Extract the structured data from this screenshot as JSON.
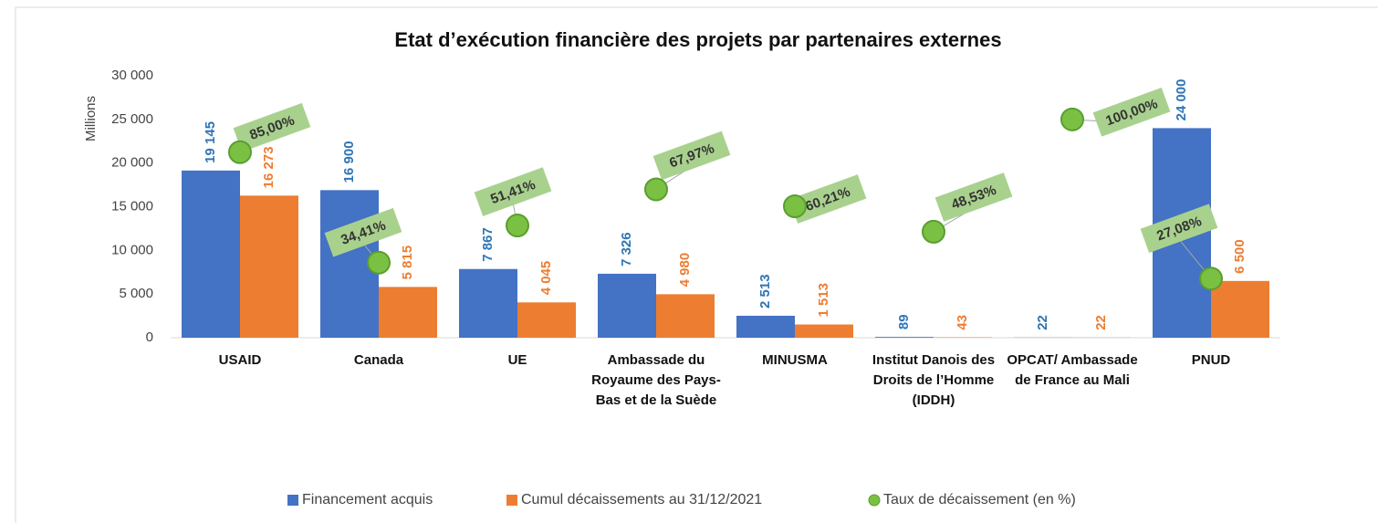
{
  "chart_data": {
    "type": "bar",
    "title": "Etat d’exécution financière des projets par partenaires externes",
    "y_label": "Millions",
    "categories": [
      "USAID",
      "Canada",
      "UE",
      "Ambassade du Royaume des Pays-Bas et de la Suède",
      "MINUSMA",
      "Institut Danois des Droits de l’Homme (IDDH)",
      "OPCAT/ Ambassade de France au Mali",
      "PNUD"
    ],
    "series": [
      {
        "name": "Financement acquis",
        "color": "#4472c4",
        "label_color": "#2e75b6",
        "values": [
          19145,
          16900,
          7867,
          7326,
          2513,
          89,
          22,
          24000
        ],
        "value_labels": [
          "19 145",
          "16 900",
          "7 867",
          "7 326",
          "2 513",
          "89",
          "22",
          "24 000"
        ]
      },
      {
        "name": "Cumul décaissements au 31/12/2021",
        "color": "#ed7d31",
        "label_color": "#ed7d31",
        "values": [
          16273,
          5815,
          4045,
          4980,
          1513,
          43,
          22,
          6500
        ],
        "value_labels": [
          "16 273",
          "5 815",
          "4 045",
          "4 980",
          "1 513",
          "43",
          "22",
          "6 500"
        ]
      },
      {
        "name": "Taux de décaissement (en %)",
        "type": "scatter",
        "axis": "y2",
        "color": "#7ac143",
        "values": [
          85.0,
          34.41,
          51.41,
          67.97,
          60.21,
          48.53,
          100.0,
          27.08
        ],
        "value_labels": [
          "85,00%",
          "34,41%",
          "51,41%",
          "67,97%",
          "60,21%",
          "48,53%",
          "100,00%",
          "27,08%"
        ]
      }
    ],
    "ylim": [
      0,
      30000
    ],
    "yticks": [
      {
        "value": 0,
        "label": "0"
      },
      {
        "value": 5000,
        "label": "5 000"
      },
      {
        "value": 10000,
        "label": "10 000"
      },
      {
        "value": 15000,
        "label": "15 000"
      },
      {
        "value": 20000,
        "label": "20 000"
      },
      {
        "value": 25000,
        "label": "25 000"
      },
      {
        "value": 30000,
        "label": "30 000"
      }
    ],
    "y2lim": [
      0,
      120
    ],
    "legend": "bottom"
  }
}
